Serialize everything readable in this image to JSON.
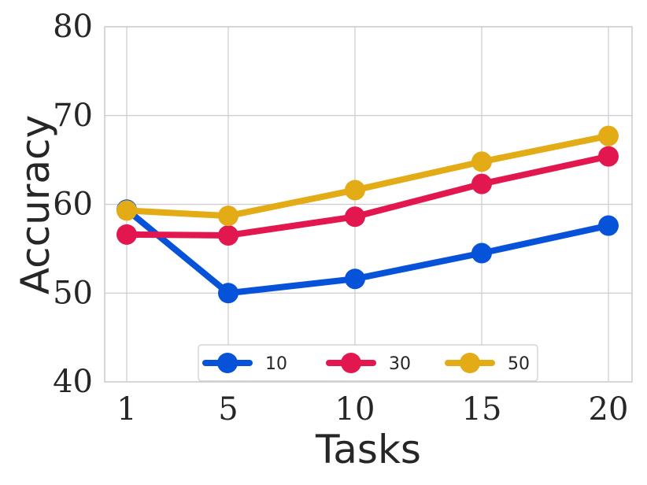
{
  "chart_data": {
    "type": "line",
    "xlabel": "Tasks",
    "ylabel": "Accuracy",
    "x": [
      1,
      5,
      10,
      15,
      20
    ],
    "x_tick_labels": [
      "1",
      "5",
      "10",
      "15",
      "20"
    ],
    "ylim": [
      40,
      80
    ],
    "y_ticks": [
      40,
      50,
      60,
      70,
      80
    ],
    "y_tick_labels": [
      "40",
      "50",
      "60",
      "70",
      "80"
    ],
    "grid": true,
    "legend_position": "bottom-center",
    "series": [
      {
        "name": "10",
        "color": "#0652d8",
        "values": [
          59.4,
          50.0,
          51.6,
          54.5,
          57.6
        ]
      },
      {
        "name": "30",
        "color": "#e3174f",
        "values": [
          56.6,
          56.5,
          58.6,
          62.3,
          65.4
        ]
      },
      {
        "name": "50",
        "color": "#e3ab16",
        "values": [
          59.3,
          58.7,
          61.6,
          64.8,
          67.7
        ]
      }
    ]
  }
}
